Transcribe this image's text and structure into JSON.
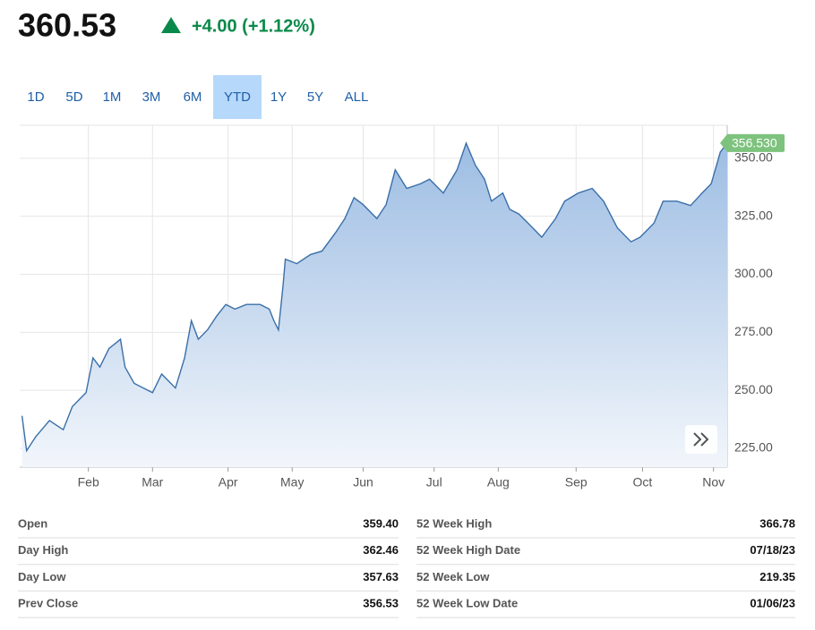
{
  "quote": {
    "price": "360.53",
    "change": "+4.00 (+1.12%)"
  },
  "ranges": [
    "1D",
    "5D",
    "1M",
    "3M",
    "6M",
    "YTD",
    "1Y",
    "5Y",
    "ALL"
  ],
  "active_range": "YTD",
  "chart_data": {
    "type": "area",
    "x": [
      3,
      5,
      9,
      15,
      21,
      25,
      31,
      34,
      37,
      41,
      46,
      48,
      52,
      56,
      60,
      64,
      70,
      74,
      77,
      80,
      84,
      88,
      92,
      96,
      101,
      107,
      111,
      113,
      115,
      117,
      118,
      123,
      129,
      134,
      140,
      144,
      148,
      152,
      158,
      162,
      166,
      171,
      177,
      181,
      187,
      193,
      197,
      201,
      205,
      208,
      213,
      216,
      220,
      224,
      230,
      236,
      240,
      246,
      252,
      257,
      263,
      269,
      273,
      279,
      283,
      289,
      295,
      300,
      304,
      308,
      311
    ],
    "series": [
      {
        "color": "#3a6fa8",
        "values": [
          239,
          224,
          230,
          237,
          233,
          243,
          249,
          264,
          260,
          268,
          272,
          260,
          253,
          251,
          249,
          257,
          251,
          264,
          280,
          272,
          276,
          282,
          287,
          285,
          287,
          287,
          285,
          280,
          276,
          295,
          306.5,
          304.6,
          308.5,
          310,
          318,
          324,
          333,
          330,
          324,
          330,
          345,
          337,
          339,
          341,
          335,
          345,
          356.5,
          347,
          341,
          331.5,
          335,
          328,
          326,
          322,
          316,
          324,
          331.5,
          335,
          337,
          331.5,
          320,
          314,
          316,
          322,
          331.5,
          331.5,
          329.6,
          335,
          339,
          352.7,
          356.5
        ]
      }
    ],
    "xlim": [
      2,
      311
    ],
    "xticks": [
      {
        "value": 32,
        "label": "Feb"
      },
      {
        "value": 60,
        "label": "Mar"
      },
      {
        "value": 93,
        "label": "Apr"
      },
      {
        "value": 121,
        "label": "May"
      },
      {
        "value": 152,
        "label": "Jun"
      },
      {
        "value": 183,
        "label": "Jul"
      },
      {
        "value": 211,
        "label": "Aug"
      },
      {
        "value": 245,
        "label": "Sep"
      },
      {
        "value": 274,
        "label": "Oct"
      },
      {
        "value": 305,
        "label": "Nov"
      }
    ],
    "ylim": [
      216.9,
      364.2
    ],
    "yticks": [
      {
        "value": 225,
        "label": "225.00"
      },
      {
        "value": 250,
        "label": "250.00"
      },
      {
        "value": 275,
        "label": "275.00"
      },
      {
        "value": 300,
        "label": "300.00"
      },
      {
        "value": 325,
        "label": "325.00"
      },
      {
        "value": 350,
        "label": "350.00"
      }
    ],
    "last": {
      "value": 356.53,
      "label": "356.530"
    },
    "grid": true
  },
  "stats": [
    [
      [
        "Open",
        "359.40"
      ],
      [
        "52 Week High",
        "366.78"
      ]
    ],
    [
      [
        "Day High",
        "362.46"
      ],
      [
        "52 Week High Date",
        "07/18/23"
      ]
    ],
    [
      [
        "Day Low",
        "357.63"
      ],
      [
        "52 Week Low",
        "219.35"
      ]
    ],
    [
      [
        "Prev Close",
        "356.53"
      ],
      [
        "52 Week Low Date",
        "01/06/23"
      ]
    ]
  ]
}
